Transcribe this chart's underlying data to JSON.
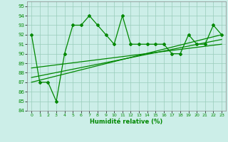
{
  "xlabel": "Humidité relative (%)",
  "ylabel": "",
  "xlim": [
    -0.5,
    23.5
  ],
  "ylim": [
    84,
    95.5
  ],
  "yticks": [
    84,
    85,
    86,
    87,
    88,
    89,
    90,
    91,
    92,
    93,
    94,
    95
  ],
  "xticks": [
    0,
    1,
    2,
    3,
    4,
    5,
    6,
    7,
    8,
    9,
    10,
    11,
    12,
    13,
    14,
    15,
    16,
    17,
    18,
    19,
    20,
    21,
    22,
    23
  ],
  "background_color": "#cceee8",
  "grid_color": "#99ccbb",
  "line_color": "#008800",
  "series": [
    {
      "x": [
        0,
        1,
        2,
        3,
        4,
        5,
        6,
        7,
        8,
        9,
        10,
        11,
        12,
        13,
        14,
        15,
        16,
        17,
        18,
        19,
        20,
        21,
        22,
        23
      ],
      "y": [
        92,
        87,
        87,
        85,
        90,
        93,
        93,
        94,
        93,
        92,
        91,
        94,
        91,
        91,
        91,
        91,
        91,
        90,
        90,
        92,
        91,
        91,
        93,
        92
      ],
      "marker": "D",
      "markersize": 2.0,
      "linewidth": 0.9,
      "has_marker": true
    },
    {
      "x": [
        0,
        23
      ],
      "y": [
        87,
        92
      ],
      "marker": null,
      "markersize": 0,
      "linewidth": 0.9,
      "has_marker": false
    },
    {
      "x": [
        0,
        23
      ],
      "y": [
        87.5,
        91.5
      ],
      "marker": null,
      "markersize": 0,
      "linewidth": 0.9,
      "has_marker": false
    },
    {
      "x": [
        0,
        23
      ],
      "y": [
        88.5,
        91.0
      ],
      "marker": null,
      "markersize": 0,
      "linewidth": 0.9,
      "has_marker": false
    }
  ]
}
